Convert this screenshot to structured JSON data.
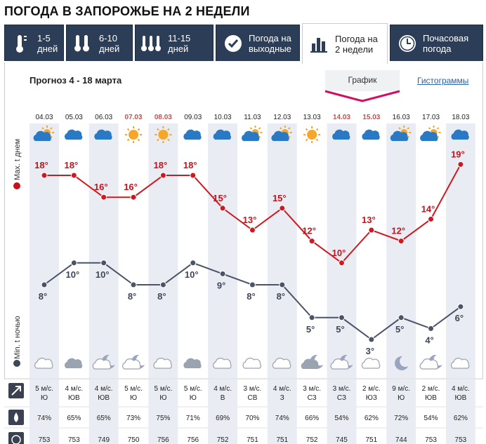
{
  "page": {
    "title": "ПОГОДА В ЗАПОРОЖЬЕ НА 2 НЕДЕЛИ"
  },
  "tabs": [
    {
      "l1": "1-5",
      "l2": "дней",
      "icon": "thermometer-1-icon",
      "active": false
    },
    {
      "l1": "6-10",
      "l2": "дней",
      "icon": "thermometer-2-icon",
      "active": false
    },
    {
      "l1": "11-15",
      "l2": "дней",
      "icon": "thermometer-3-icon",
      "active": false
    },
    {
      "l1": "Погода на",
      "l2": "выходные",
      "icon": "checkmark-icon",
      "active": false
    },
    {
      "l1": "Погода на",
      "l2": "2 недели",
      "icon": "bar-chart-icon",
      "active": true
    },
    {
      "l1": "Почасовая",
      "l2": "погода",
      "icon": "clock-icon",
      "active": false
    }
  ],
  "forecast": {
    "range_label": "Прогноз 4 - 18 марта"
  },
  "view": {
    "graph_label": "График",
    "histogram_label": "Гистограммы"
  },
  "axis": {
    "max_label": "Max. t днем",
    "min_label": "Min. t ночью"
  },
  "chart_data": {
    "type": "line",
    "x": [
      "04.03",
      "05.03",
      "06.03",
      "07.03",
      "08.03",
      "09.03",
      "10.03",
      "11.03",
      "12.03",
      "13.03",
      "14.03",
      "15.03",
      "16.03",
      "17.03",
      "18.03"
    ],
    "weekend": [
      false,
      false,
      false,
      true,
      true,
      false,
      false,
      false,
      false,
      false,
      true,
      true,
      false,
      false,
      false
    ],
    "series": [
      {
        "name": "Max. t днем",
        "values": [
          18,
          18,
          16,
          16,
          18,
          18,
          15,
          13,
          15,
          12,
          10,
          13,
          12,
          14,
          19
        ],
        "color": "#cc1a20"
      },
      {
        "name": "Min. t ночью",
        "values": [
          8,
          10,
          10,
          8,
          8,
          10,
          9,
          8,
          8,
          5,
          5,
          3,
          5,
          4,
          6
        ],
        "color": "#4a5466"
      }
    ],
    "unit": "°"
  },
  "day_icons": [
    "partly-cloudy-sun-icon",
    "cloud-icon",
    "cloud-icon",
    "sun-icon",
    "sun-icon",
    "cloud-icon",
    "cloud-icon",
    "partly-cloudy-sun-icon",
    "partly-cloudy-sun-icon",
    "sun-icon",
    "cloud-icon",
    "cloud-icon",
    "partly-cloudy-sun-icon",
    "partly-cloudy-sun-icon",
    "cloud-icon"
  ],
  "night_icons": [
    "cloud-icon",
    "dark-cloud-icon",
    "cloud-moon-icon",
    "cloud-moon-icon",
    "cloud-icon",
    "dark-cloud-icon",
    "cloud-icon",
    "cloud-icon",
    "cloud-icon",
    "dark-cloud-moon-icon",
    "cloud-moon-icon",
    "cloud-icon",
    "moon-icon",
    "cloud-moon-icon",
    "cloud-icon"
  ],
  "wind": [
    {
      "speed": "5 м/с.",
      "dir": "Ю"
    },
    {
      "speed": "4 м/с.",
      "dir": "ЮВ"
    },
    {
      "speed": "4 м/с.",
      "dir": "ЮВ"
    },
    {
      "speed": "5 м/с.",
      "dir": "Ю"
    },
    {
      "speed": "5 м/с.",
      "dir": "Ю"
    },
    {
      "speed": "5 м/с.",
      "dir": "Ю"
    },
    {
      "speed": "4 м/с.",
      "dir": "В"
    },
    {
      "speed": "3 м/с.",
      "dir": "СВ"
    },
    {
      "speed": "4 м/с.",
      "dir": "З"
    },
    {
      "speed": "3 м/с.",
      "dir": "СЗ"
    },
    {
      "speed": "3 м/с.",
      "dir": "СЗ"
    },
    {
      "speed": "2 м/с.",
      "dir": "ЮЗ"
    },
    {
      "speed": "9 м/с.",
      "dir": "Ю"
    },
    {
      "speed": "2 м/с.",
      "dir": "ЮВ"
    },
    {
      "speed": "4 м/с.",
      "dir": "ЮВ"
    }
  ],
  "humidity": [
    "74%",
    "65%",
    "65%",
    "73%",
    "75%",
    "71%",
    "69%",
    "70%",
    "74%",
    "66%",
    "54%",
    "62%",
    "72%",
    "54%",
    "62%"
  ],
  "pressure": [
    "753",
    "753",
    "749",
    "750",
    "756",
    "756",
    "752",
    "751",
    "751",
    "752",
    "745",
    "751",
    "744",
    "753",
    "753"
  ],
  "row_icons": {
    "wind": "wind-arrow-icon",
    "humidity": "drop-icon",
    "pressure": "gauge-icon"
  }
}
